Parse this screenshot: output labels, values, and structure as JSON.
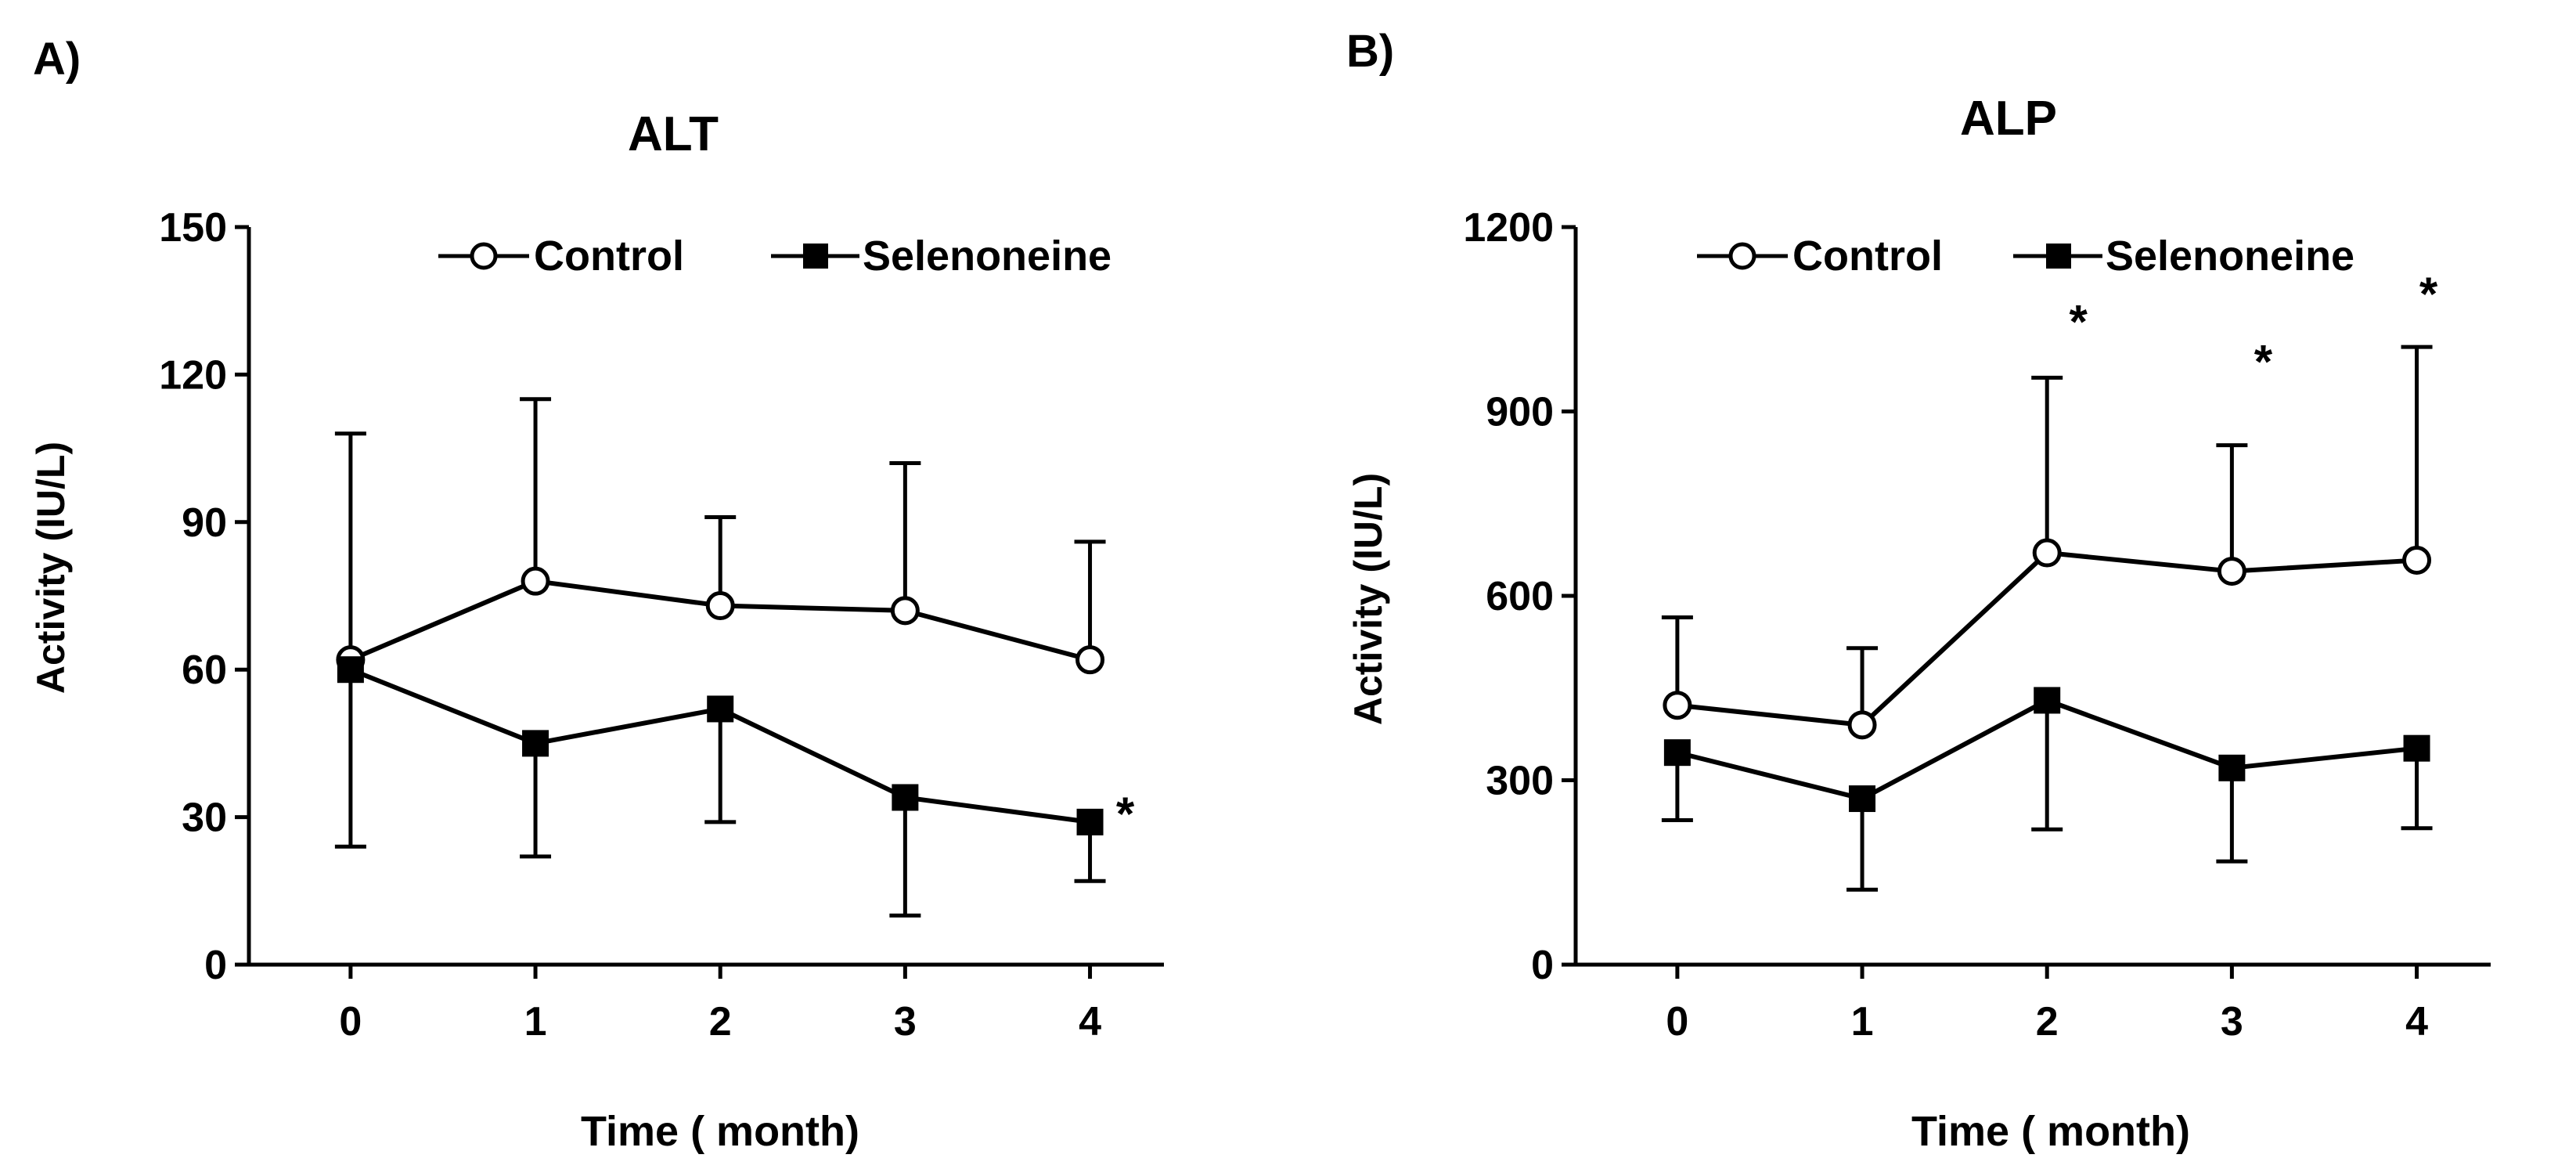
{
  "chart_data": [
    {
      "type": "line",
      "panel_label": "A)",
      "title": "ALT",
      "xlabel": "Time ( month)",
      "ylabel": "Activity (IU/L)",
      "x": [
        0,
        1,
        2,
        3,
        4
      ],
      "x_tick_labels": [
        "0",
        "1",
        "2",
        "3",
        "4"
      ],
      "xlim": [
        -0.55,
        4.4
      ],
      "ylim": [
        0,
        150
      ],
      "y_ticks": [
        0,
        30,
        60,
        90,
        120,
        150
      ],
      "y_tick_labels": [
        "0",
        "30",
        "60",
        "90",
        "120",
        "150"
      ],
      "legend_position": "top-right",
      "series": [
        {
          "name": "Control",
          "marker": "open-circle",
          "values": [
            62,
            78,
            73,
            72,
            62
          ],
          "error_upper": [
            108,
            115,
            91,
            102,
            86
          ],
          "error_lower": null
        },
        {
          "name": "Selenoneine",
          "marker": "filled-square",
          "values": [
            60,
            45,
            52,
            34,
            29
          ],
          "error_upper": null,
          "error_lower": [
            24,
            22,
            29,
            10,
            17
          ]
        }
      ],
      "annotations": [
        {
          "text": "*",
          "x": 4,
          "y": 29,
          "placement": "right"
        }
      ]
    },
    {
      "type": "line",
      "panel_label": "B)",
      "title": "ALP",
      "xlabel": "Time ( month)",
      "ylabel": "Activity (IU/L)",
      "x": [
        0,
        1,
        2,
        3,
        4
      ],
      "x_tick_labels": [
        "0",
        "1",
        "2",
        "3",
        "4"
      ],
      "xlim": [
        -0.55,
        4.4
      ],
      "ylim": [
        0,
        1200
      ],
      "y_ticks": [
        0,
        300,
        600,
        900,
        1200
      ],
      "y_tick_labels": [
        "0",
        "300",
        "600",
        "900",
        "1200"
      ],
      "legend_position": "top-right",
      "series": [
        {
          "name": "Control",
          "marker": "open-circle",
          "values": [
            422,
            390,
            670,
            640,
            658
          ],
          "error_upper": [
            565,
            515,
            955,
            845,
            1005
          ],
          "error_lower": null
        },
        {
          "name": "Selenoneine",
          "marker": "filled-square",
          "values": [
            345,
            270,
            430,
            320,
            352
          ],
          "error_upper": null,
          "error_lower": [
            235,
            122,
            220,
            168,
            222
          ]
        }
      ],
      "annotations": [
        {
          "text": "*",
          "x": 2,
          "y": 1020,
          "placement": "above-right"
        },
        {
          "text": "*",
          "x": 3,
          "y": 955,
          "placement": "above-right"
        },
        {
          "text": "*",
          "x": 4,
          "y": 1065,
          "placement": "above"
        }
      ]
    }
  ]
}
